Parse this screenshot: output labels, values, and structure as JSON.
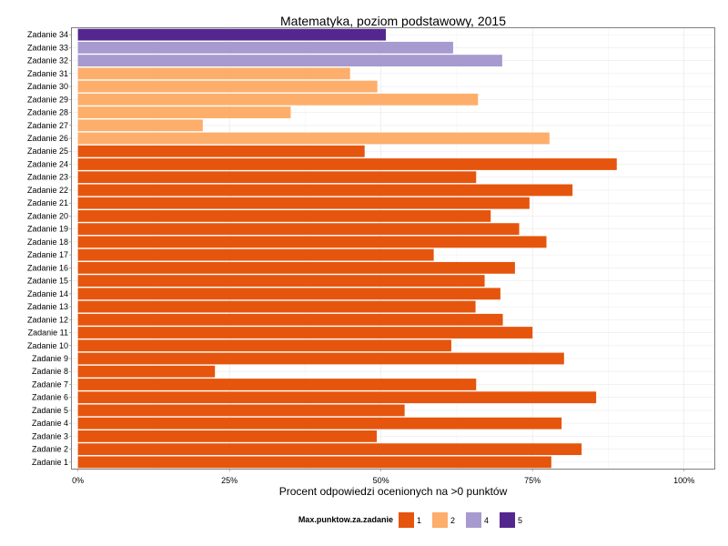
{
  "chart_data": {
    "type": "bar",
    "orientation": "horizontal",
    "title": "Matematyka, poziom podstawowy, 2015",
    "xlabel": "Procent odpowiedzi ocenionych na >0 punktów",
    "ylabel": "",
    "xlim": [
      -0.01,
      1.05
    ],
    "x_ticks": [
      {
        "value": 0,
        "label": "0%"
      },
      {
        "value": 0.25,
        "label": "25%"
      },
      {
        "value": 0.5,
        "label": "50%"
      },
      {
        "value": 0.75,
        "label": "75%"
      },
      {
        "value": 1.0,
        "label": "100%"
      }
    ],
    "grid": true,
    "legend": {
      "title": "Max.punktow.za.zadanie",
      "position": "bottom",
      "entries": [
        {
          "label": "1",
          "color": "#E6550D"
        },
        {
          "label": "2",
          "color": "#FDAE6B"
        },
        {
          "label": "4",
          "color": "#A69ACF"
        },
        {
          "label": "5",
          "color": "#54278F"
        }
      ]
    },
    "bars": [
      {
        "category": "Zadanie 1",
        "value": 0.781,
        "group": "1"
      },
      {
        "category": "Zadanie 2",
        "value": 0.831,
        "group": "1"
      },
      {
        "category": "Zadanie 3",
        "value": 0.493,
        "group": "1"
      },
      {
        "category": "Zadanie 4",
        "value": 0.798,
        "group": "1"
      },
      {
        "category": "Zadanie 5",
        "value": 0.539,
        "group": "1"
      },
      {
        "category": "Zadanie 6",
        "value": 0.855,
        "group": "1"
      },
      {
        "category": "Zadanie 7",
        "value": 0.657,
        "group": "1"
      },
      {
        "category": "Zadanie 8",
        "value": 0.226,
        "group": "1"
      },
      {
        "category": "Zadanie 9",
        "value": 0.802,
        "group": "1"
      },
      {
        "category": "Zadanie 10",
        "value": 0.616,
        "group": "1"
      },
      {
        "category": "Zadanie 11",
        "value": 0.75,
        "group": "1"
      },
      {
        "category": "Zadanie 12",
        "value": 0.701,
        "group": "1"
      },
      {
        "category": "Zadanie 13",
        "value": 0.656,
        "group": "1"
      },
      {
        "category": "Zadanie 14",
        "value": 0.697,
        "group": "1"
      },
      {
        "category": "Zadanie 15",
        "value": 0.671,
        "group": "1"
      },
      {
        "category": "Zadanie 16",
        "value": 0.721,
        "group": "1"
      },
      {
        "category": "Zadanie 17",
        "value": 0.587,
        "group": "1"
      },
      {
        "category": "Zadanie 18",
        "value": 0.773,
        "group": "1"
      },
      {
        "category": "Zadanie 19",
        "value": 0.728,
        "group": "1"
      },
      {
        "category": "Zadanie 20",
        "value": 0.681,
        "group": "1"
      },
      {
        "category": "Zadanie 21",
        "value": 0.745,
        "group": "1"
      },
      {
        "category": "Zadanie 22",
        "value": 0.816,
        "group": "1"
      },
      {
        "category": "Zadanie 23",
        "value": 0.657,
        "group": "1"
      },
      {
        "category": "Zadanie 24",
        "value": 0.889,
        "group": "1"
      },
      {
        "category": "Zadanie 25",
        "value": 0.473,
        "group": "1"
      },
      {
        "category": "Zadanie 26",
        "value": 0.778,
        "group": "2"
      },
      {
        "category": "Zadanie 27",
        "value": 0.206,
        "group": "2"
      },
      {
        "category": "Zadanie 28",
        "value": 0.351,
        "group": "2"
      },
      {
        "category": "Zadanie 29",
        "value": 0.66,
        "group": "2"
      },
      {
        "category": "Zadanie 30",
        "value": 0.494,
        "group": "2"
      },
      {
        "category": "Zadanie 31",
        "value": 0.449,
        "group": "2"
      },
      {
        "category": "Zadanie 32",
        "value": 0.7,
        "group": "4"
      },
      {
        "category": "Zadanie 33",
        "value": 0.619,
        "group": "4"
      },
      {
        "category": "Zadanie 34",
        "value": 0.508,
        "group": "5"
      }
    ]
  }
}
